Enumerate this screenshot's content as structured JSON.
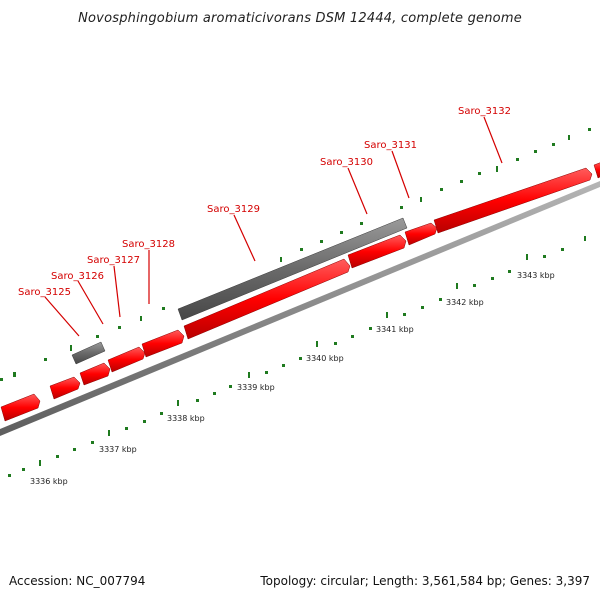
{
  "title": "Novosphingobium aromaticivorans DSM 12444, complete genome",
  "footer": {
    "accession": "Accession: NC_007794",
    "stats": "Topology: circular; Length: 3,561,584 bp; Genes: 3,397"
  },
  "colors": {
    "gene_forward": "#ff0000",
    "gene_other": "#666666",
    "backbone": "#8c8c8c",
    "ticks": "#1f7a1f",
    "label": "#d40000"
  },
  "genes": [
    {
      "name": "Saro_3125"
    },
    {
      "name": "Saro_3126"
    },
    {
      "name": "Saro_3127"
    },
    {
      "name": "Saro_3128"
    },
    {
      "name": "Saro_3129"
    },
    {
      "name": "Saro_3130"
    },
    {
      "name": "Saro_3131"
    },
    {
      "name": "Saro_3132"
    }
  ],
  "scale_labels": [
    "3336 kbp",
    "3337 kbp",
    "3338 kbp",
    "3339 kbp",
    "3340 kbp",
    "3341 kbp",
    "3342 kbp",
    "3343 kbp"
  ]
}
